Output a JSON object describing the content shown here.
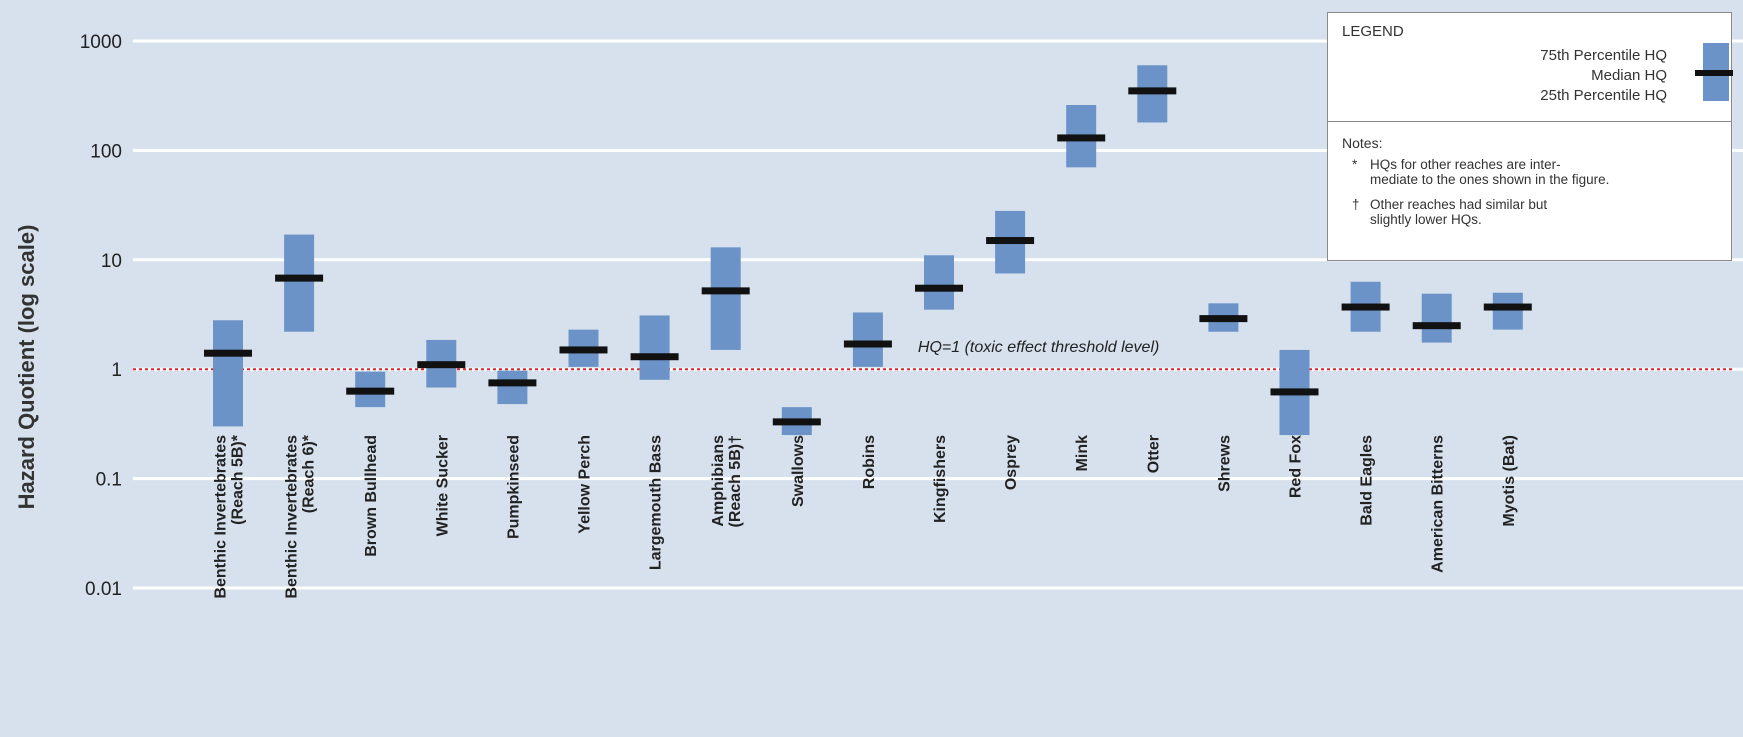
{
  "chart_data": {
    "type": "range_bar",
    "ylabel": "Hazard Quotient (log scale)",
    "yscale": "log",
    "ylim": [
      0.01,
      1000
    ],
    "yticks": [
      "0.01",
      "0.1",
      "1",
      "10",
      "100",
      "1000"
    ],
    "grid": true,
    "categories": [
      "Benthic Invertebrates (Reach 5B)*",
      "Benthic Invertebrates (Reach 6)*",
      "Brown Bullhead",
      "White Sucker",
      "Pumpkinseed",
      "Yellow Perch",
      "Largemouth Bass",
      "Amphibians (Reach 5B)†",
      "Swallows",
      "Robins",
      "Kingfishers",
      "Osprey",
      "Mink",
      "Otter",
      "Shrews",
      "Red Fox",
      "Bald Eagles",
      "American Bitterns",
      "Myotis (Bat)"
    ],
    "label_lines": [
      [
        "Benthic Invertebrates",
        "(Reach 5B)*"
      ],
      [
        "Benthic Invertebrates",
        "(Reach 6)*"
      ],
      [
        "Brown Bullhead"
      ],
      [
        "White Sucker"
      ],
      [
        "Pumpkinseed"
      ],
      [
        "Yellow Perch"
      ],
      [
        "Largemouth Bass"
      ],
      [
        "Amphibians",
        "(Reach 5B)†"
      ],
      [
        "Swallows"
      ],
      [
        "Robins"
      ],
      [
        "Kingfishers"
      ],
      [
        "Osprey"
      ],
      [
        "Mink"
      ],
      [
        "Otter"
      ],
      [
        "Shrews"
      ],
      [
        "Red Fox"
      ],
      [
        "Bald Eagles"
      ],
      [
        "American Bitterns"
      ],
      [
        "Myotis (Bat)"
      ]
    ],
    "series": [
      {
        "name": "25th Percentile HQ",
        "values": [
          0.3,
          2.2,
          0.45,
          0.68,
          0.48,
          1.05,
          0.8,
          1.5,
          0.25,
          1.05,
          3.5,
          7.5,
          70,
          180,
          2.2,
          0.25,
          2.2,
          1.75,
          2.3
        ]
      },
      {
        "name": "Median HQ",
        "values": [
          1.4,
          6.8,
          0.63,
          1.1,
          0.75,
          1.5,
          1.3,
          5.2,
          0.33,
          1.7,
          5.5,
          15,
          130,
          350,
          2.9,
          0.62,
          3.7,
          2.5,
          3.7
        ]
      },
      {
        "name": "75th Percentile HQ",
        "values": [
          2.8,
          17,
          0.95,
          1.85,
          0.97,
          2.3,
          3.1,
          13,
          0.45,
          3.3,
          11,
          28,
          260,
          600,
          4.0,
          1.5,
          6.3,
          4.9,
          5.0
        ]
      }
    ],
    "reference_line": {
      "value": 1,
      "label": "HQ=1 (toxic effect threshold level)",
      "color": "#d9272e"
    },
    "legend_placement": "top-right"
  },
  "legend": {
    "title": "LEGEND",
    "p75_label": "75th Percentile HQ",
    "median_label": "Median HQ",
    "p25_label": "25th Percentile HQ",
    "notes_title": "Notes:",
    "note1_symbol": "*",
    "note1_line1": "HQs for other reaches are inter-",
    "note1_line2": "mediate to the ones shown in the figure.",
    "note2_symbol": "†",
    "note2_line1": "Other reaches had similar but",
    "note2_line2": "slightly lower HQs."
  },
  "colors": {
    "background": "#d6e1ed",
    "bar": "#6c93c8",
    "median": "#111111",
    "grid": "#ffffff",
    "threshold": "#d9272e",
    "text": "#222222"
  }
}
